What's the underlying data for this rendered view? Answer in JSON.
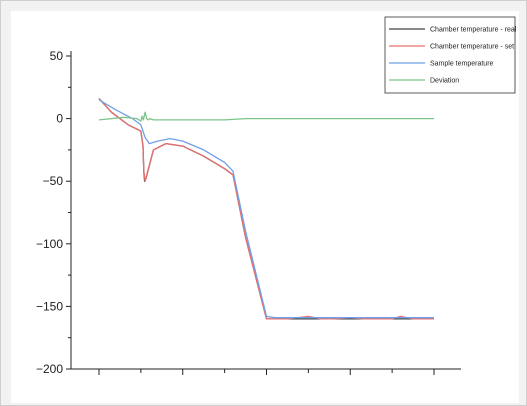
{
  "chart_data": {
    "type": "line",
    "title": "",
    "xlabel": "",
    "ylabel": "",
    "ylim": [
      -200,
      50
    ],
    "xlim": [
      0,
      8
    ],
    "yticks": [
      50,
      0,
      -50,
      -100,
      -150,
      -200
    ],
    "ytick_labels": [
      "50",
      "0",
      "−50",
      "−100",
      "−150",
      "−200"
    ],
    "xticks": [
      0,
      1,
      2,
      3,
      4,
      5,
      6,
      7,
      8
    ],
    "grid": false,
    "legend_placement": "top-right",
    "series": [
      {
        "name": "Chamber temperature - real",
        "color": "#404040",
        "x": [
          0,
          0.3,
          0.7,
          1.0,
          1.05,
          1.07,
          1.09,
          1.12,
          1.3,
          1.6,
          2.0,
          2.5,
          3.0,
          3.2,
          3.5,
          4.0,
          4.2,
          4.5,
          5.0,
          5.3,
          5.6,
          6.0,
          6.3,
          6.6,
          7.0,
          7.5,
          8.0
        ],
        "y": [
          16,
          5,
          -5,
          -10,
          -22,
          -42,
          -50,
          -48,
          -25,
          -20,
          -22,
          -30,
          -40,
          -45,
          -95,
          -160,
          -160,
          -160,
          -160,
          -160,
          -160,
          -160,
          -160,
          -160,
          -160,
          -160,
          -160
        ]
      },
      {
        "name": "Chamber temperature - set",
        "color": "#e8706e",
        "x": [
          0,
          0.3,
          0.7,
          1.0,
          1.05,
          1.07,
          1.1,
          1.3,
          1.6,
          2.0,
          2.5,
          3.0,
          3.2,
          3.5,
          4.0,
          4.2,
          4.5,
          5.0,
          5.3,
          5.6,
          6.0,
          6.3,
          6.6,
          7.0,
          7.2,
          7.5,
          8.0
        ],
        "y": [
          16,
          5,
          -5,
          -10,
          -22,
          -42,
          -50,
          -25,
          -20,
          -22,
          -30,
          -40,
          -45,
          -95,
          -160,
          -160,
          -160,
          -158,
          -160,
          -160,
          -159,
          -160,
          -160,
          -160,
          -158,
          -160,
          -160
        ]
      },
      {
        "name": "Sample temperature",
        "color": "#6fa0e8",
        "x": [
          0,
          0.4,
          0.8,
          1.0,
          1.1,
          1.2,
          1.4,
          1.7,
          2.0,
          2.5,
          3.0,
          3.2,
          3.5,
          4.0,
          4.2,
          4.5,
          5.0,
          5.5,
          6.0,
          6.5,
          7.0,
          7.5,
          8.0
        ],
        "y": [
          15,
          7,
          0,
          -5,
          -15,
          -20,
          -18,
          -16,
          -18,
          -25,
          -35,
          -42,
          -90,
          -158,
          -159,
          -159,
          -159,
          -159,
          -159,
          -159,
          -159,
          -159,
          -159
        ]
      },
      {
        "name": "Deviation",
        "color": "#7cc489",
        "x": [
          0,
          0.3,
          0.6,
          0.9,
          1.0,
          1.03,
          1.06,
          1.1,
          1.14,
          1.18,
          1.22,
          1.3,
          1.5,
          2.0,
          2.5,
          3.0,
          3.5,
          4.0,
          4.5,
          5.0,
          5.5,
          6.0,
          6.5,
          7.0,
          7.5,
          8.0
        ],
        "y": [
          -1,
          0,
          1,
          0,
          -2,
          2,
          -1,
          5,
          0,
          -1,
          0,
          -1,
          -1,
          -1,
          -1,
          -1,
          0,
          0,
          0,
          0,
          0,
          0,
          0,
          0,
          0,
          0
        ]
      }
    ]
  }
}
